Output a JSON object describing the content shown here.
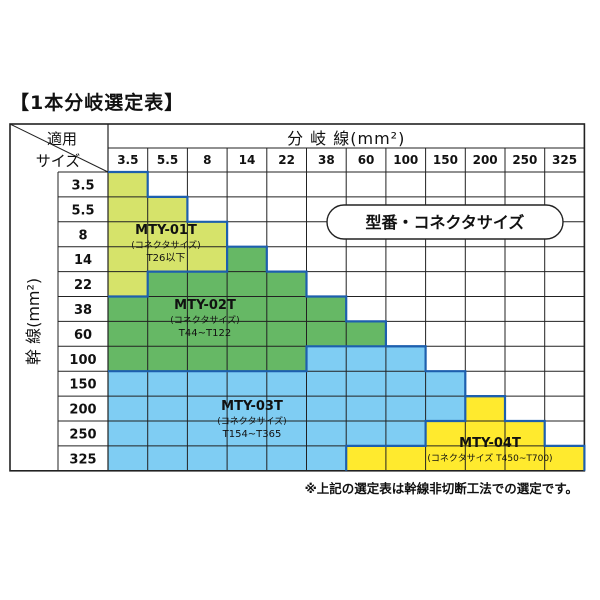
{
  "title": "【1本分岐選定表】",
  "corner_top": "適用",
  "corner_bottom": "サイズ",
  "branch_header": "分 岐 線(mm²)",
  "trunk_header": "幹 線(mm²)",
  "branch_sizes": [
    "3.5",
    "5.5",
    "8",
    "14",
    "22",
    "38",
    "60",
    "100",
    "150",
    "200",
    "250",
    "325"
  ],
  "trunk_sizes": [
    "3.5",
    "5.5",
    "8",
    "14",
    "22",
    "38",
    "60",
    "100",
    "150",
    "200",
    "250",
    "325"
  ],
  "legend_label": "型番・コネクタサイズ",
  "models": [
    {
      "name": "MTY-01T",
      "sub1": "コネクタサイズ",
      "sub2": "T26以下",
      "color": "#d6e36a"
    },
    {
      "name": "MTY-02T",
      "sub1": "コネクタサイズ",
      "sub2": "T44~T122",
      "color": "#66b865"
    },
    {
      "name": "MTY-03T",
      "sub1": "コネクタサイズ",
      "sub2": "T154~T365",
      "color": "#7fcdf3"
    },
    {
      "name": "MTY-04T",
      "sub1": "コネクタサイズ T450~T700",
      "sub2": "",
      "color": "#ffea2e"
    }
  ],
  "note": "※上記の選定表は幹線非切断工法での選定です。"
}
